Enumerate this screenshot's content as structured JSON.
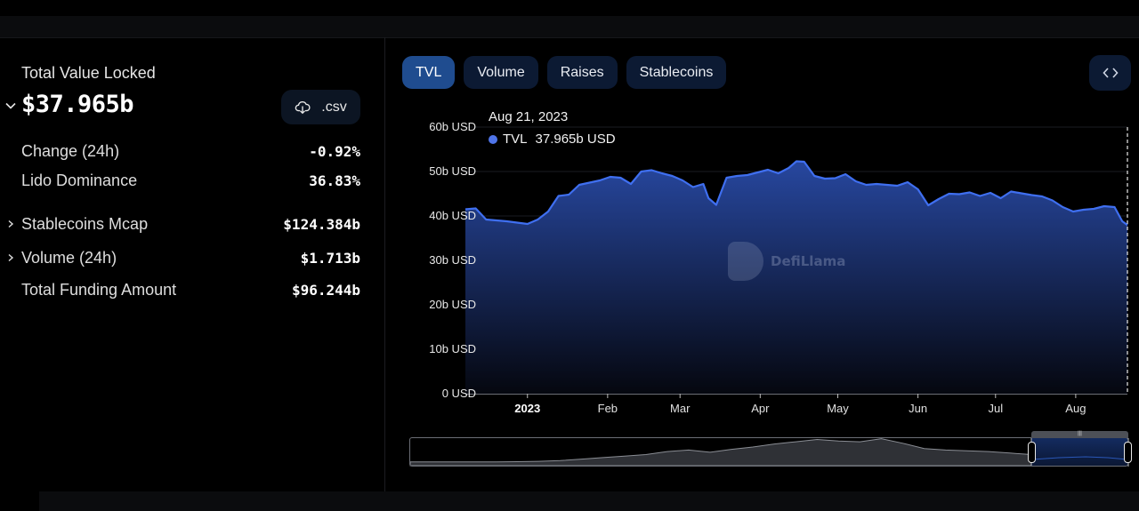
{
  "summary": {
    "tvl_label": "Total Value Locked",
    "tvl_value": "$37.965b",
    "csv_button_label": ".csv",
    "csv_icon": "cloud-download-icon",
    "stats": [
      {
        "label": "Change (24h)",
        "value": "-0.92%",
        "expandable": false
      },
      {
        "label": "Lido Dominance",
        "value": "36.83%",
        "expandable": false
      },
      {
        "label": "Stablecoins Mcap",
        "value": "$124.384b",
        "expandable": true
      },
      {
        "label": "Volume (24h)",
        "value": "$1.713b",
        "expandable": true
      },
      {
        "label": "Total Funding Amount",
        "value": "$96.244b",
        "expandable": false
      }
    ]
  },
  "tabs": [
    {
      "label": "TVL",
      "active": true
    },
    {
      "label": "Volume",
      "active": false
    },
    {
      "label": "Raises",
      "active": false
    },
    {
      "label": "Stablecoins",
      "active": false
    }
  ],
  "embed_icon": "code-brackets-icon",
  "tooltip": {
    "date": "Aug 21, 2023",
    "series": "TVL",
    "value": "37.965b USD"
  },
  "watermark": "DefiLlama",
  "colors": {
    "line": "#3f6ff0",
    "area_top": "#27479f",
    "area_bottom": "#05070f",
    "active_tab": "#1f4c8f",
    "tab": "#0c1a33"
  },
  "chart_data": {
    "type": "area",
    "title": "Total Value Locked",
    "xlabel": "",
    "ylabel": "",
    "y_ticks": [
      "0 USD",
      "10b USD",
      "20b USD",
      "30b USD",
      "40b USD",
      "50b USD",
      "60b USD"
    ],
    "x_ticks": [
      "2023",
      "Feb",
      "Mar",
      "Apr",
      "May",
      "Jun",
      "Jul",
      "Aug"
    ],
    "ylim": [
      0,
      60
    ],
    "grid": true,
    "legend": "tooltip",
    "series": [
      {
        "name": "TVL",
        "unit": "b USD",
        "x": [
          "2022-12-08",
          "2022-12-12",
          "2022-12-16",
          "2022-12-20",
          "2022-12-24",
          "2022-12-28",
          "2023-01-01",
          "2023-01-05",
          "2023-01-09",
          "2023-01-13",
          "2023-01-17",
          "2023-01-21",
          "2023-01-25",
          "2023-01-29",
          "2023-02-02",
          "2023-02-06",
          "2023-02-10",
          "2023-02-14",
          "2023-02-18",
          "2023-02-22",
          "2023-02-26",
          "2023-03-02",
          "2023-03-06",
          "2023-03-10",
          "2023-03-12",
          "2023-03-15",
          "2023-03-19",
          "2023-03-23",
          "2023-03-27",
          "2023-03-31",
          "2023-04-04",
          "2023-04-08",
          "2023-04-12",
          "2023-04-15",
          "2023-04-18",
          "2023-04-22",
          "2023-04-26",
          "2023-04-30",
          "2023-05-04",
          "2023-05-08",
          "2023-05-12",
          "2023-05-16",
          "2023-05-20",
          "2023-05-24",
          "2023-05-28",
          "2023-06-01",
          "2023-06-05",
          "2023-06-09",
          "2023-06-13",
          "2023-06-17",
          "2023-06-21",
          "2023-06-25",
          "2023-06-29",
          "2023-07-03",
          "2023-07-07",
          "2023-07-11",
          "2023-07-15",
          "2023-07-19",
          "2023-07-23",
          "2023-07-27",
          "2023-07-31",
          "2023-08-04",
          "2023-08-08",
          "2023-08-12",
          "2023-08-16",
          "2023-08-19",
          "2023-08-21"
        ],
        "values": [
          41.5,
          41.7,
          39.2,
          39.0,
          38.8,
          38.5,
          38.2,
          39.2,
          41.0,
          44.5,
          44.8,
          47.0,
          47.5,
          48.0,
          48.8,
          48.6,
          47.2,
          50.0,
          50.3,
          49.6,
          49.0,
          48.0,
          46.5,
          47.2,
          44.0,
          42.5,
          48.6,
          49.0,
          49.2,
          49.8,
          50.4,
          49.6,
          50.8,
          52.3,
          52.2,
          49.0,
          48.4,
          48.5,
          49.4,
          47.8,
          47.0,
          47.2,
          47.0,
          46.8,
          47.6,
          46.0,
          42.4,
          43.8,
          45.0,
          44.9,
          45.3,
          44.5,
          45.2,
          44.0,
          45.5,
          45.1,
          44.7,
          44.4,
          43.5,
          42.0,
          41.0,
          41.4,
          41.6,
          42.2,
          42.0,
          38.8,
          37.965
        ]
      }
    ]
  }
}
